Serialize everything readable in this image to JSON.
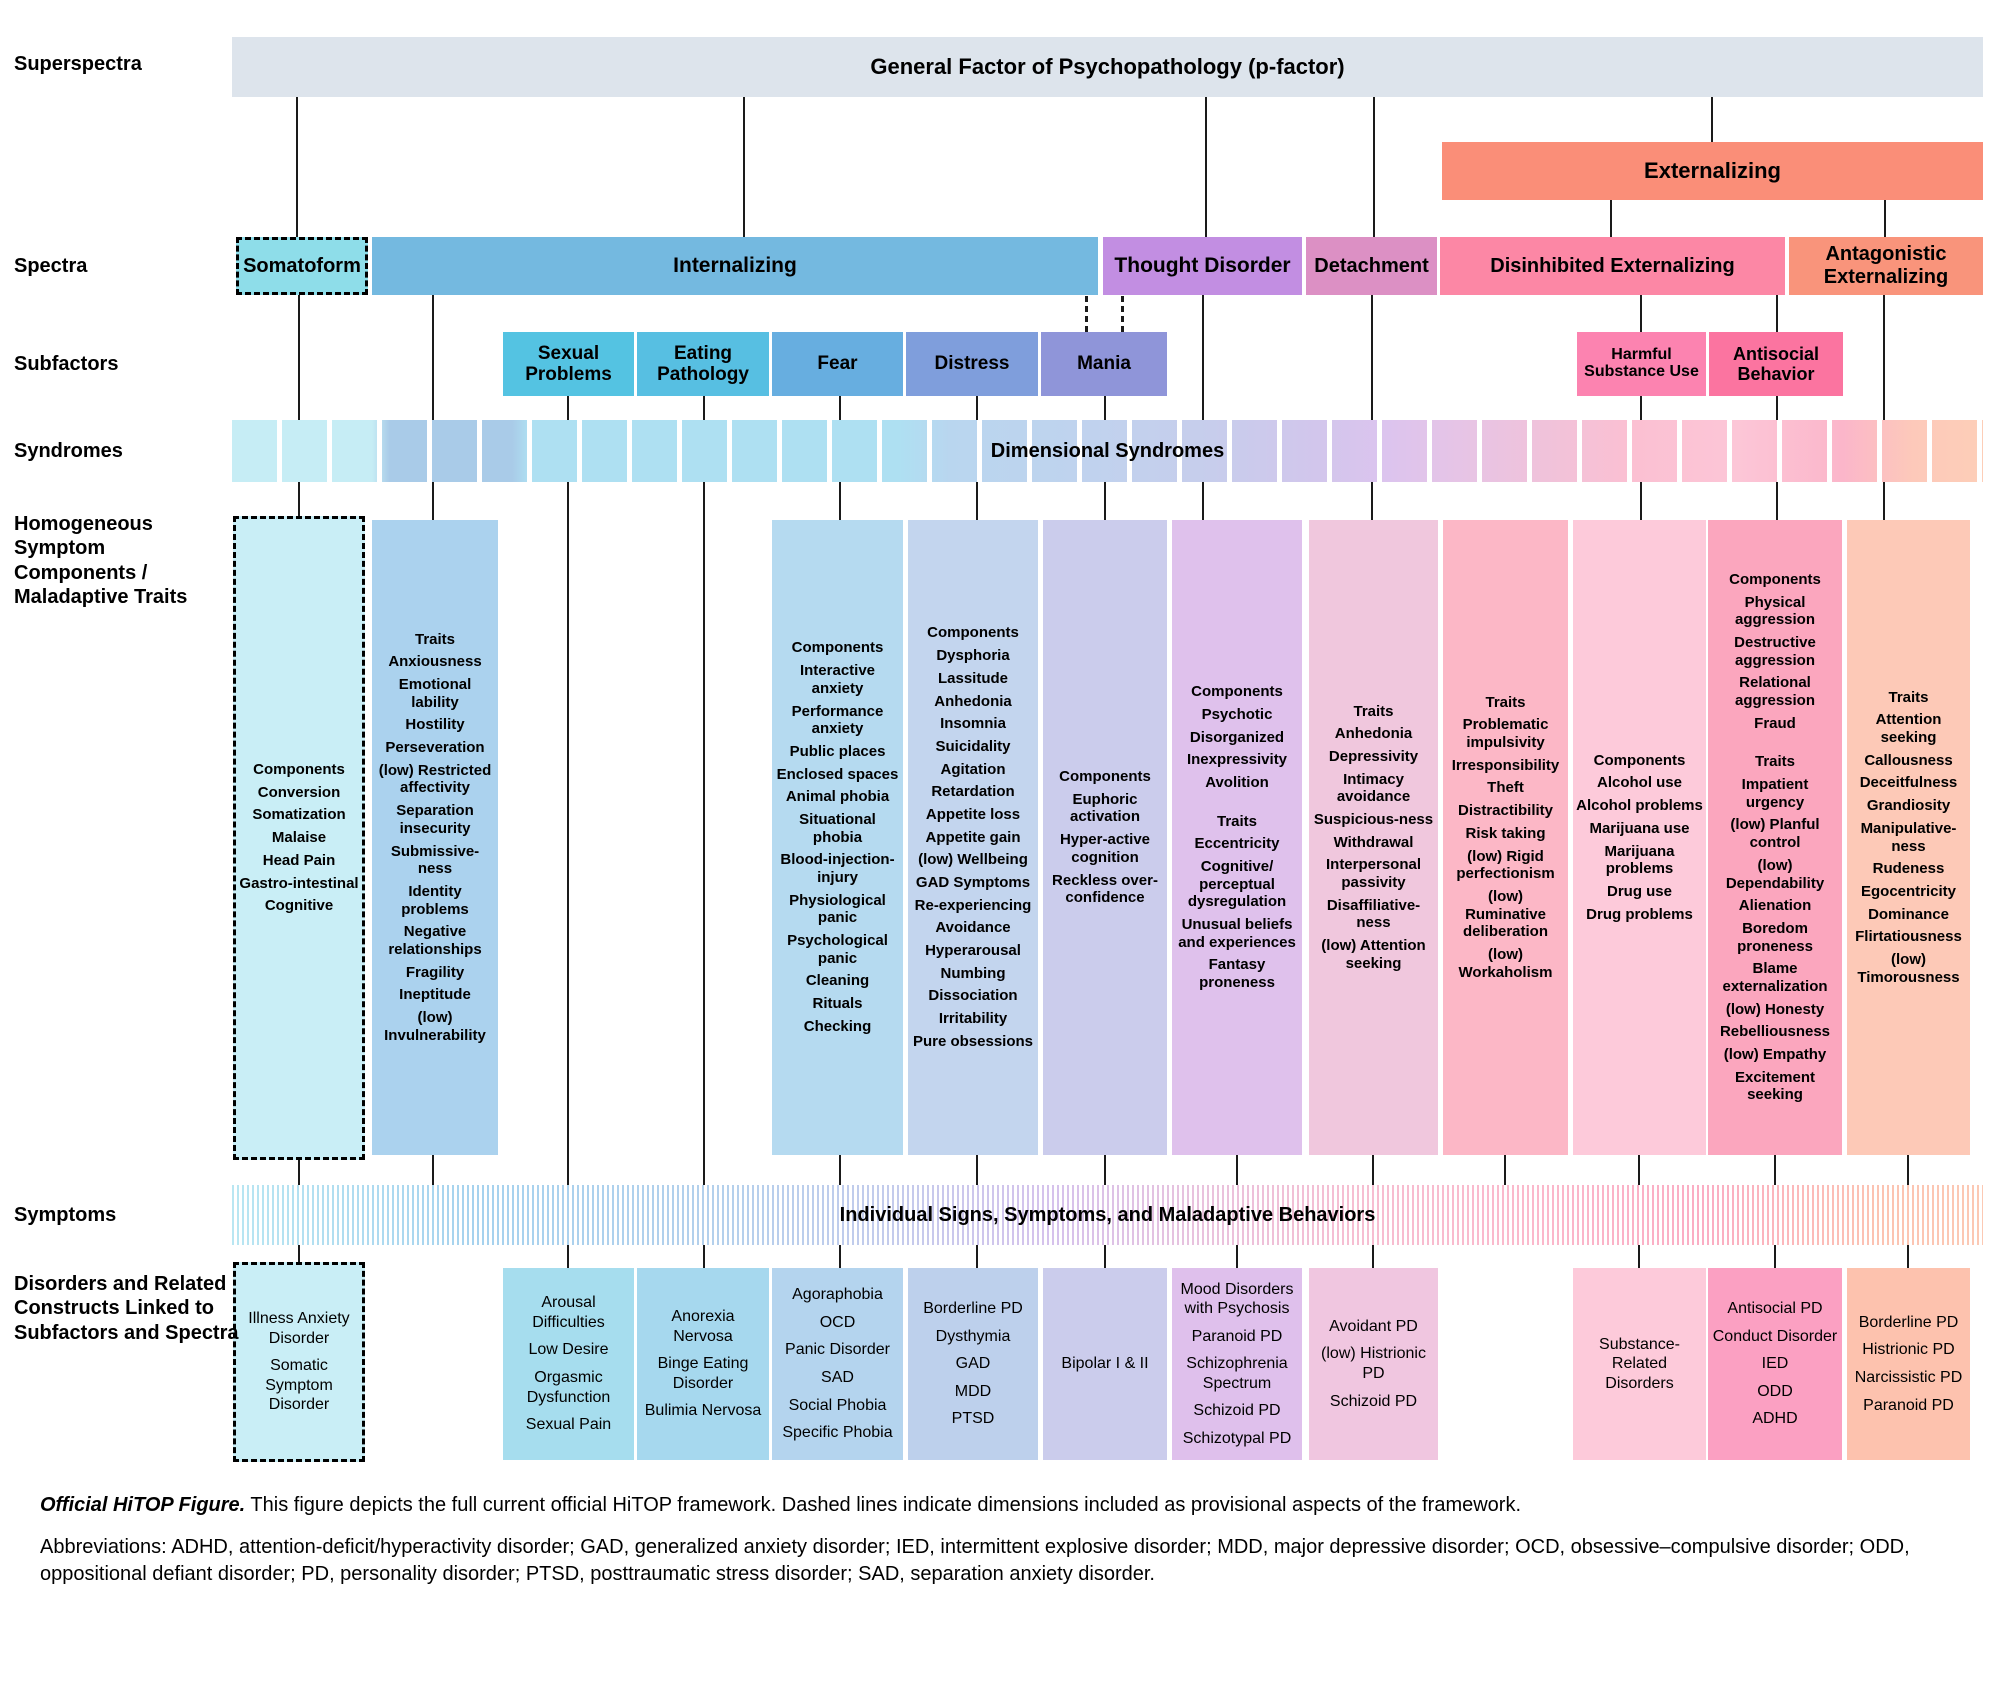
{
  "row_labels": {
    "superspectra": "Superspectra",
    "spectra": "Spectra",
    "subfactors": "Subfactors",
    "syndromes": "Syndromes",
    "components": "Homogeneous Symptom Components / Maladaptive Traits",
    "symptoms": "Symptoms",
    "disorders": "Disorders and Related Constructs Linked to Subfactors and Spectra"
  },
  "superspectra": {
    "p_factor": "General Factor of Psychopathology (p-factor)",
    "externalizing": "Externalizing"
  },
  "spectra": {
    "somatoform": "Somatoform",
    "internalizing": "Internalizing",
    "thought_disorder": "Thought Disorder",
    "detachment": "Detachment",
    "disinhibited": "Disinhibited Externalizing",
    "antagonistic": "Antagonistic Externalizing"
  },
  "subfactors": {
    "sexual": "Sexual Problems",
    "eating": "Eating Pathology",
    "fear": "Fear",
    "distress": "Distress",
    "mania": "Mania",
    "substance": "Harmful Substance Use",
    "antisocial": "Antisocial Behavior"
  },
  "bands": {
    "syndromes": "Dimensional Syndromes",
    "symptoms": "Individual Signs, Symptoms, and Maladaptive Behaviors"
  },
  "columns": {
    "somatoform": [
      "Components",
      "Conversion",
      "Somatization",
      "Malaise",
      "Head Pain",
      "Gastro-intestinal",
      "Cognitive"
    ],
    "internalizing_traits": [
      "Traits",
      "Anxiousness",
      "Emotional lability",
      "Hostility",
      "Perseveration",
      "(low) Restricted affectivity",
      "Separation insecurity",
      "Submissive-ness",
      "Identity problems",
      "Negative relationships",
      "Fragility",
      "Ineptitude",
      "(low) Invulnerability"
    ],
    "fear_components": [
      "Components",
      "Interactive anxiety",
      "Performance anxiety",
      "Public places",
      "Enclosed spaces",
      "Animal phobia",
      "Situational phobia",
      "Blood-injection-injury",
      "Physiological panic",
      "Psychological panic",
      "Cleaning",
      "Rituals",
      "Checking"
    ],
    "distress_components": [
      "Components",
      "Dysphoria",
      "Lassitude",
      "Anhedonia",
      "Insomnia",
      "Suicidality",
      "Agitation",
      "Retardation",
      "Appetite loss",
      "Appetite gain",
      "(low) Wellbeing",
      "GAD Symptoms",
      "Re-experiencing",
      "Avoidance",
      "Hyperarousal",
      "Numbing",
      "Dissociation",
      "Irritability",
      "Pure obsessions"
    ],
    "mania_components": [
      "Components",
      "Euphoric activation",
      "Hyper-active cognition",
      "Reckless over-confidence"
    ],
    "thought_disorder": [
      "Components",
      "Psychotic",
      "Disorganized",
      "Inexpressivity",
      "Avolition",
      "",
      "Traits",
      "Eccentricity",
      "Cognitive/ perceptual dysregulation",
      "Unusual beliefs and experiences",
      "Fantasy proneness"
    ],
    "detachment_traits": [
      "Traits",
      "Anhedonia",
      "Depressivity",
      "Intimacy avoidance",
      "Suspicious-ness",
      "Withdrawal",
      "Interpersonal passivity",
      "Disaffiliative-ness",
      "(low) Attention seeking"
    ],
    "disinhibited_traits": [
      "Traits",
      "Problematic impulsivity",
      "Irresponsibility",
      "Theft",
      "Distractibility",
      "Risk taking",
      "(low) Rigid perfectionism",
      "(low) Ruminative deliberation",
      "(low) Workaholism"
    ],
    "substance_components": [
      "Components",
      "Alcohol use",
      "Alcohol problems",
      "Marijuana use",
      "Marijuana problems",
      "Drug use",
      "Drug problems"
    ],
    "antisocial_components_traits": [
      "Components",
      "Physical aggression",
      "Destructive aggression",
      "Relational aggression",
      "Fraud",
      "",
      "Traits",
      "Impatient urgency",
      "(low) Planful control",
      "(low) Dependability",
      "Alienation",
      "Boredom proneness",
      "Blame externalization",
      "(low) Honesty",
      "Rebelliousness",
      "(low) Empathy",
      "Excitement seeking"
    ],
    "antagonistic_traits": [
      "Traits",
      "Attention seeking",
      "Callousness",
      "Deceitfulness",
      "Grandiosity",
      "Manipulative-ness",
      "Rudeness",
      "Egocentricity",
      "Dominance",
      "Flirtatiousness",
      "(low) Timorousness"
    ]
  },
  "disorders": {
    "somatoform": [
      "Illness Anxiety Disorder",
      "Somatic Symptom Disorder"
    ],
    "sexual": [
      "Arousal Difficulties",
      "Low Desire",
      "Orgasmic Dysfunction",
      "Sexual Pain"
    ],
    "eating": [
      "Anorexia Nervosa",
      "Binge Eating Disorder",
      "Bulimia Nervosa"
    ],
    "fear": [
      "Agoraphobia",
      "OCD",
      "Panic Disorder",
      "SAD",
      "Social Phobia",
      "Specific Phobia"
    ],
    "distress": [
      "Borderline PD",
      "Dysthymia",
      "GAD",
      "MDD",
      "PTSD"
    ],
    "mania": [
      "Bipolar I & II"
    ],
    "thought_disorder": [
      "Mood Disorders with Psychosis",
      "Paranoid PD",
      "Schizophrenia Spectrum",
      "Schizoid PD",
      "Schizotypal PD"
    ],
    "detachment": [
      "Avoidant PD",
      "(low) Histrionic PD",
      "Schizoid PD"
    ],
    "substance": [
      "Substance-Related Disorders"
    ],
    "antisocial": [
      "Antisocial PD",
      "Conduct Disorder",
      "IED",
      "ODD",
      "ADHD"
    ],
    "antagonistic": [
      "Borderline PD",
      "Histrionic PD",
      "Narcissistic PD",
      "Paranoid PD"
    ]
  },
  "caption": {
    "lead": "Official HiTOP Figure.",
    "line1": " This figure depicts the full current official HiTOP framework. Dashed lines indicate dimensions included as provisional aspects of the framework.",
    "abbreviations": "Abbreviations: ADHD, attention-deficit/hyperactivity disorder; GAD, generalized anxiety disorder; IED, intermittent explosive disorder; MDD, major depressive disorder; OCD, obsessive–compulsive disorder; ODD, oppositional defiant disorder; PD, personality disorder; PTSD, posttraumatic stress disorder; SAD, separation anxiety disorder."
  },
  "colors": {
    "pfactor": "#dde4ec",
    "externalizing": "#fa8e78",
    "somatoform": "#8edde9",
    "internalizing": "#74b9e0",
    "thought": "#c28ee2",
    "detachment": "#dc90c4",
    "disinhibited": "#fc87a5",
    "antagonistic": "#f9947b",
    "sexual": "#54c3e2",
    "eating": "#57bfe2",
    "fear": "#67aee0",
    "distress": "#7f9edc",
    "mania": "#8f95d9",
    "substance": "#fc83b0",
    "antisocial": "#fb74a0",
    "col1": "#c9eef6",
    "col2": "#abd2ee",
    "col3": "#b5daf0",
    "col4": "#c3d5ee",
    "col5": "#cbccec",
    "col6": "#dfc1ec",
    "col7": "#f0c7dd",
    "col8": "#fcb7c6",
    "col9": "#fdcada",
    "col10": "#fba6be",
    "col11": "#fdc9b7",
    "dis1": "#c9eef6",
    "dis2": "#a6ddee",
    "dis3": "#a6d8ee",
    "dis4": "#b4d4ee",
    "dis5": "#bdd0ec",
    "dis6": "#cbccec",
    "dis7": "#dfc0ec",
    "dis8": "#f0c6e0",
    "dis9": "#fdcada",
    "dis10": "#fba0c2",
    "dis11": "#fdc2ae"
  }
}
